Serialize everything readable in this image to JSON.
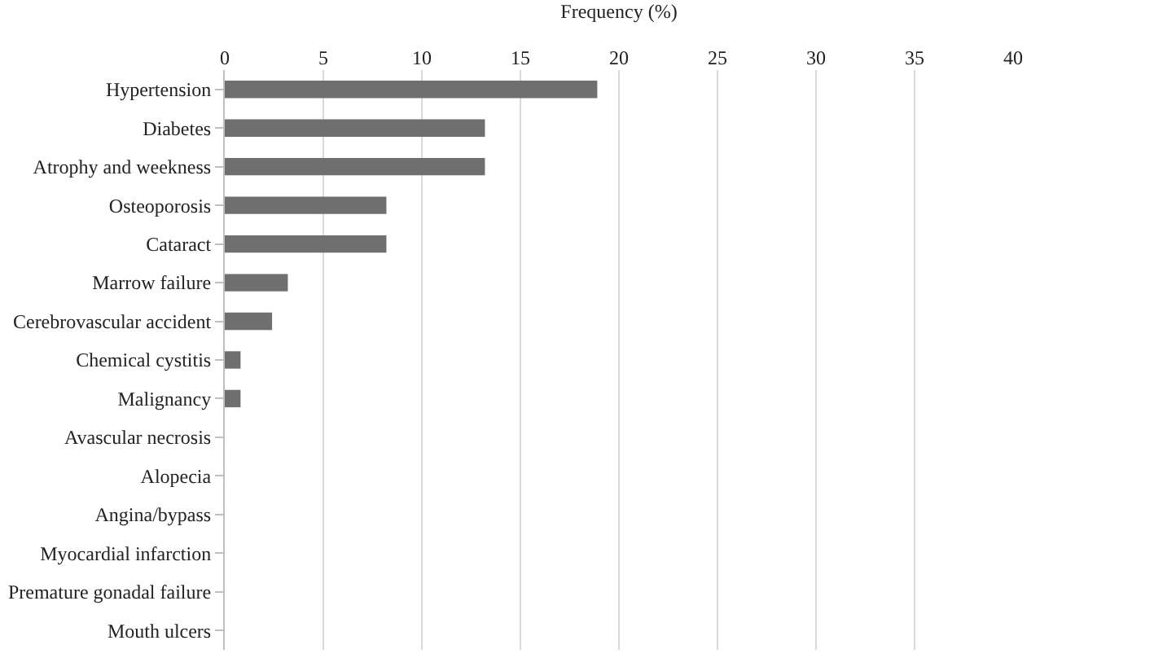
{
  "chart_data": {
    "type": "bar",
    "orientation": "horizontal",
    "xlabel": "Frequency (%)",
    "categories": [
      "Hypertension",
      "Diabetes",
      "Atrophy and weekness",
      "Osteoporosis",
      "Cataract",
      "Marrow failure",
      "Cerebrovascular accident",
      "Chemical cystitis",
      "Malignancy",
      "Avascular necrosis",
      "Alopecia",
      "Angina/bypass",
      "Myocardial infarction",
      "Premature gonadal failure",
      "Mouth ulcers"
    ],
    "values": [
      18.9,
      13.2,
      13.2,
      8.2,
      8.2,
      3.2,
      2.4,
      0.8,
      0.8,
      0,
      0,
      0,
      0,
      0,
      0
    ],
    "color": "#6f6f6f",
    "xlim": [
      0,
      40
    ],
    "xticks": [
      0,
      5,
      10,
      15,
      20,
      25,
      30,
      35,
      40
    ],
    "grid": "x"
  }
}
